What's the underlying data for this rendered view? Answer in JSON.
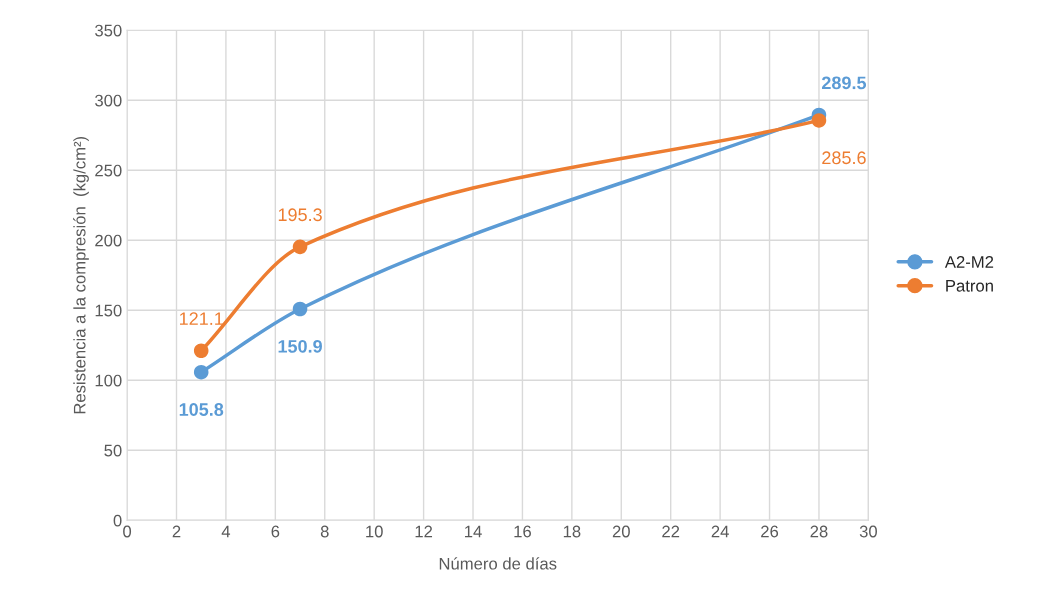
{
  "chart_data": {
    "type": "line",
    "xlabel": "Número de días",
    "ylabel": "Resistencia a la compresión  (kg/cm²)",
    "x": [
      3,
      7,
      28
    ],
    "series": [
      {
        "name": "A2-M2",
        "color": "#5b9bd5",
        "values": [
          105.8,
          150.9,
          289.5
        ]
      },
      {
        "name": "Patron",
        "color": "#ed7d31",
        "values": [
          121.1,
          195.3,
          285.6
        ]
      }
    ],
    "xlim": [
      0,
      30
    ],
    "xticks": [
      0,
      2,
      4,
      6,
      8,
      10,
      12,
      14,
      16,
      18,
      20,
      22,
      24,
      26,
      28,
      30
    ],
    "ylim": [
      0,
      350
    ],
    "yticks": [
      0,
      50,
      100,
      150,
      200,
      250,
      300,
      350
    ],
    "grid": true,
    "legend": "right",
    "marker": "circle",
    "line_style": "solid",
    "data_labels": true
  }
}
